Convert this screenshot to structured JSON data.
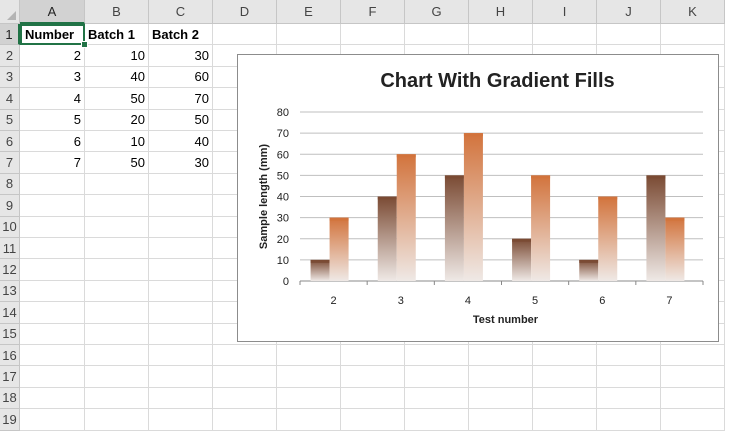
{
  "sheet": {
    "columns": [
      "A",
      "B",
      "C",
      "D",
      "E",
      "F",
      "G",
      "H",
      "I",
      "J",
      "K"
    ],
    "rows": [
      "1",
      "2",
      "3",
      "4",
      "5",
      "6",
      "7",
      "8",
      "9",
      "10",
      "11",
      "12",
      "13",
      "14",
      "15",
      "16",
      "17",
      "18",
      "19"
    ],
    "header": [
      "Number",
      "Batch 1",
      "Batch 2"
    ],
    "data": [
      [
        "2",
        "10",
        "30"
      ],
      [
        "3",
        "40",
        "60"
      ],
      [
        "4",
        "50",
        "70"
      ],
      [
        "5",
        "20",
        "50"
      ],
      [
        "6",
        "10",
        "40"
      ],
      [
        "7",
        "50",
        "30"
      ]
    ],
    "active_cell": "A1"
  },
  "chart_data": {
    "type": "bar",
    "title": "Chart With Gradient Fills",
    "xlabel": "Test number",
    "ylabel": "Sample length (mm)",
    "categories": [
      "2",
      "3",
      "4",
      "5",
      "6",
      "7"
    ],
    "series": [
      {
        "values": [
          10,
          40,
          50,
          20,
          10,
          50
        ],
        "color": "#7a4a33"
      },
      {
        "values": [
          30,
          60,
          70,
          50,
          40,
          30
        ],
        "color": "#d2733c"
      }
    ],
    "ylim": [
      0,
      80
    ],
    "yticks": [
      "0",
      "10",
      "20",
      "30",
      "40",
      "50",
      "60",
      "70",
      "80"
    ],
    "grid": true
  }
}
